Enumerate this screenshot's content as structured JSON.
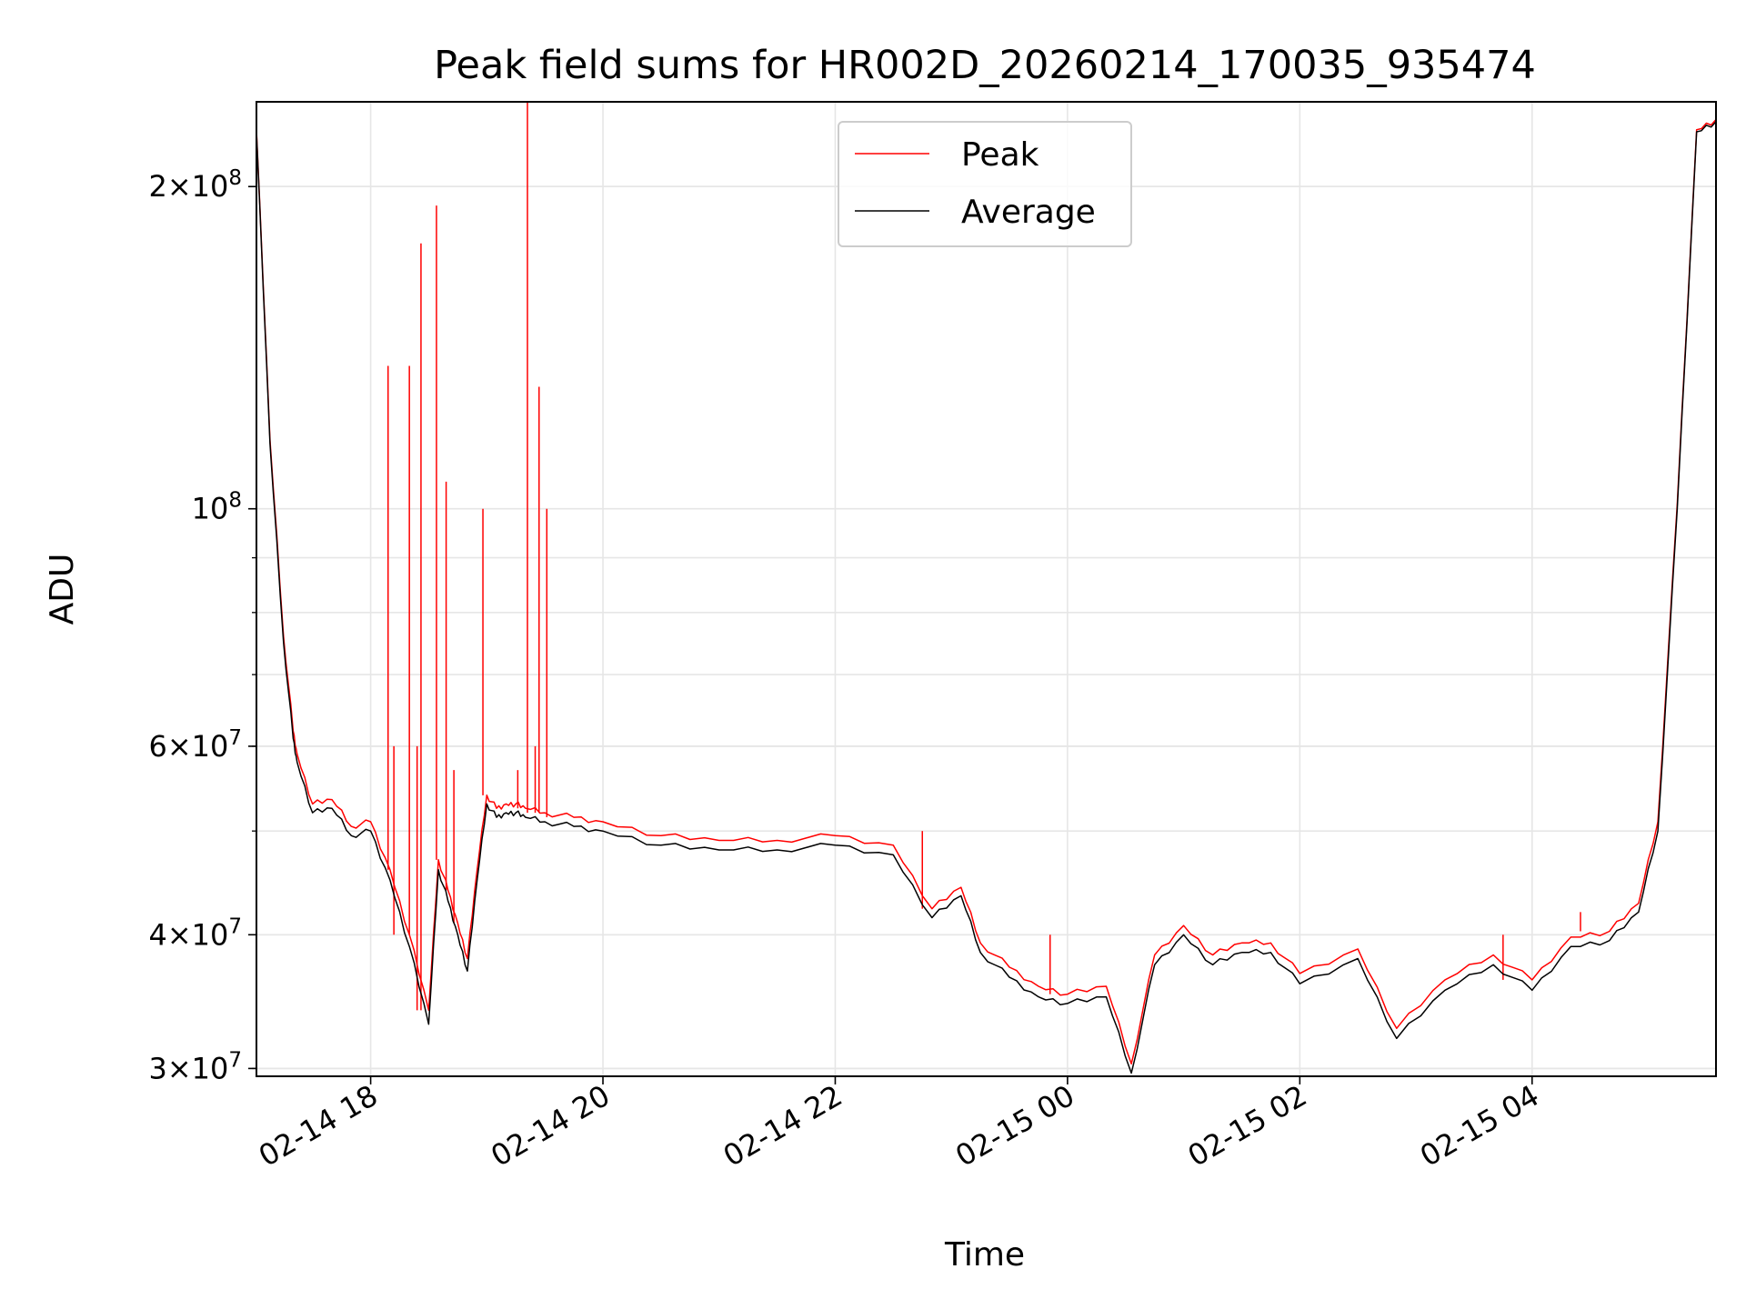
{
  "chart_data": {
    "type": "line",
    "title": "Peak field sums for HR002D_20260214_170035_935474",
    "xlabel": "Time",
    "ylabel": "ADU",
    "yscale": "log",
    "ylim": [
      29500000,
      240000000
    ],
    "xlim": [
      "2026-02-14 17:01",
      "2026-02-15 05:35"
    ],
    "x_ticks": [
      "02-14 18",
      "02-14 20",
      "02-14 22",
      "02-15 00",
      "02-15 02",
      "02-15 04"
    ],
    "y_ticks_major": [
      "3×10^7",
      "4×10^7",
      "6×10^7",
      "10^8",
      "2×10^8"
    ],
    "grid": true,
    "legend": {
      "placement": "top-center",
      "entries": [
        "Peak",
        "Average"
      ]
    },
    "colors": {
      "Peak": "#ff0000",
      "Average": "#000000"
    },
    "series": [
      {
        "name": "Average",
        "x": [
          "2026-02-14 17:01",
          "2026-02-14 17:08",
          "2026-02-14 17:15",
          "2026-02-14 17:20",
          "2026-02-14 17:22",
          "2026-02-14 17:30",
          "2026-02-14 17:40",
          "2026-02-14 17:50",
          "2026-02-14 18:00",
          "2026-02-14 18:10",
          "2026-02-14 18:20",
          "2026-02-14 18:30",
          "2026-02-14 18:35",
          "2026-02-14 18:40",
          "2026-02-14 18:45",
          "2026-02-14 18:50",
          "2026-02-14 18:55",
          "2026-02-14 19:00",
          "2026-02-14 19:05",
          "2026-02-14 19:10",
          "2026-02-14 19:15",
          "2026-02-14 19:20",
          "2026-02-14 19:30",
          "2026-02-14 19:45",
          "2026-02-14 20:00",
          "2026-02-14 20:30",
          "2026-02-14 21:00",
          "2026-02-14 21:30",
          "2026-02-14 22:00",
          "2026-02-14 22:30",
          "2026-02-14 22:50",
          "2026-02-14 23:05",
          "2026-02-14 23:15",
          "2026-02-14 23:30",
          "2026-02-14 23:45",
          "2026-02-15 00:00",
          "2026-02-15 00:20",
          "2026-02-15 00:33",
          "2026-02-15 00:45",
          "2026-02-15 01:00",
          "2026-02-15 01:15",
          "2026-02-15 01:30",
          "2026-02-15 01:45",
          "2026-02-15 02:00",
          "2026-02-15 02:30",
          "2026-02-15 02:50",
          "2026-02-15 03:15",
          "2026-02-15 03:40",
          "2026-02-15 04:00",
          "2026-02-15 04:20",
          "2026-02-15 04:40",
          "2026-02-15 04:55",
          "2026-02-15 05:05",
          "2026-02-15 05:15",
          "2026-02-15 05:25",
          "2026-02-15 05:35"
        ],
        "values": [
          225000000,
          115000000,
          75000000,
          61000000,
          58000000,
          52000000,
          52500000,
          49500000,
          50000000,
          45000000,
          39000000,
          33000000,
          46000000,
          43000000,
          40000000,
          37000000,
          45000000,
          53000000,
          51500000,
          52000000,
          52000000,
          51500000,
          51000000,
          50500000,
          50000000,
          48500000,
          48000000,
          48000000,
          48500000,
          47500000,
          41500000,
          43500000,
          38500000,
          36500000,
          35000000,
          34500000,
          35000000,
          29700000,
          37500000,
          40000000,
          37500000,
          38500000,
          38500000,
          36000000,
          38000000,
          32000000,
          35500000,
          37500000,
          35500000,
          39000000,
          39500000,
          42000000,
          50000000,
          100000000,
          225000000,
          230000000
        ]
      },
      {
        "name": "Peak",
        "x": [
          "2026-02-14 17:01",
          "2026-02-14 17:08",
          "2026-02-14 17:15",
          "2026-02-14 17:20",
          "2026-02-14 17:22",
          "2026-02-14 17:30",
          "2026-02-14 17:40",
          "2026-02-14 17:50",
          "2026-02-14 18:00",
          "2026-02-14 18:10",
          "2026-02-14 18:20",
          "2026-02-14 18:30",
          "2026-02-14 18:35",
          "2026-02-14 18:40",
          "2026-02-14 18:45",
          "2026-02-14 18:50",
          "2026-02-14 18:55",
          "2026-02-14 19:00",
          "2026-02-14 19:05",
          "2026-02-14 19:10",
          "2026-02-14 19:15",
          "2026-02-14 19:20",
          "2026-02-14 19:30",
          "2026-02-14 19:45",
          "2026-02-14 20:00",
          "2026-02-14 20:30",
          "2026-02-14 21:00",
          "2026-02-14 21:30",
          "2026-02-14 22:00",
          "2026-02-14 22:30",
          "2026-02-14 22:50",
          "2026-02-14 23:05",
          "2026-02-14 23:15",
          "2026-02-14 23:30",
          "2026-02-14 23:45",
          "2026-02-15 00:00",
          "2026-02-15 00:20",
          "2026-02-15 00:33",
          "2026-02-15 00:45",
          "2026-02-15 01:00",
          "2026-02-15 01:15",
          "2026-02-15 01:30",
          "2026-02-15 01:45",
          "2026-02-15 02:00",
          "2026-02-15 02:30",
          "2026-02-15 02:50",
          "2026-02-15 03:15",
          "2026-02-15 03:40",
          "2026-02-15 04:00",
          "2026-02-15 04:20",
          "2026-02-15 04:40",
          "2026-02-15 04:55",
          "2026-02-15 05:05",
          "2026-02-15 05:15",
          "2026-02-15 05:25",
          "2026-02-15 05:35"
        ],
        "values": [
          226000000,
          116000000,
          76000000,
          62000000,
          59000000,
          53000000,
          53500000,
          50500000,
          51000000,
          46000000,
          40000000,
          34000000,
          47000000,
          44000000,
          41000000,
          38000000,
          46000000,
          54000000,
          52500000,
          53000000,
          53000000,
          52500000,
          52000000,
          51500000,
          51000000,
          49500000,
          49000000,
          49000000,
          49500000,
          48500000,
          42300000,
          44300000,
          39300000,
          37300000,
          35800000,
          35200000,
          35800000,
          30300000,
          38300000,
          40800000,
          38300000,
          39300000,
          39300000,
          36800000,
          38800000,
          32700000,
          36300000,
          38300000,
          36300000,
          39800000,
          40300000,
          42800000,
          51000000,
          101000000,
          226000000,
          231000000
        ],
        "spikes": [
          {
            "x": "2026-02-14 18:09",
            "value": 136000000
          },
          {
            "x": "2026-02-14 18:12",
            "value": 60000000
          },
          {
            "x": "2026-02-14 18:20",
            "value": 136000000
          },
          {
            "x": "2026-02-14 18:24",
            "value": 60000000
          },
          {
            "x": "2026-02-14 18:26",
            "value": 177000000
          },
          {
            "x": "2026-02-14 18:34",
            "value": 192000000
          },
          {
            "x": "2026-02-14 18:39",
            "value": 106000000
          },
          {
            "x": "2026-02-14 18:43",
            "value": 57000000
          },
          {
            "x": "2026-02-14 18:58",
            "value": 100000000
          },
          {
            "x": "2026-02-14 19:16",
            "value": 57000000
          },
          {
            "x": "2026-02-14 19:21",
            "value": 240000000
          },
          {
            "x": "2026-02-14 19:25",
            "value": 60000000
          },
          {
            "x": "2026-02-14 19:27",
            "value": 130000000
          },
          {
            "x": "2026-02-14 19:31",
            "value": 100000000
          },
          {
            "x": "2026-02-14 22:45",
            "value": 50000000
          },
          {
            "x": "2026-02-14 23:51",
            "value": 40000000
          },
          {
            "x": "2026-02-15 03:45",
            "value": 40000000
          },
          {
            "x": "2026-02-15 04:25",
            "value": 42000000
          }
        ]
      }
    ]
  }
}
